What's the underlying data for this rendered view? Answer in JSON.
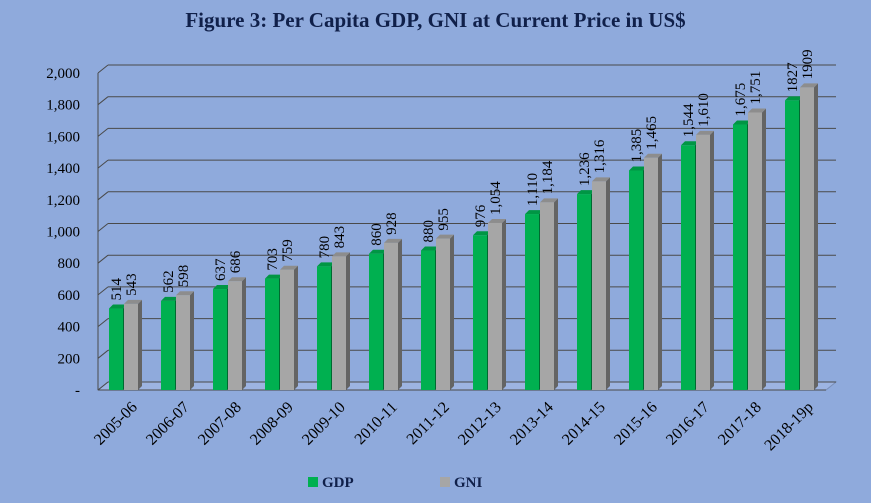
{
  "chart_data": {
    "type": "bar",
    "title": "Figure 3: Per Capita GDP, GNI at Current Price in US$",
    "categories": [
      "2005-06",
      "2006-07",
      "2007-08",
      "2008-09",
      "2009-10",
      "2010-11",
      "2011-12",
      "2012-13",
      "2013-14",
      "2014-15",
      "2015-16",
      "2016-17",
      "2017-18",
      "2018-19p"
    ],
    "series": [
      {
        "name": "GDP",
        "color": "#00b050",
        "values": [
          514,
          562,
          637,
          703,
          780,
          860,
          880,
          976,
          1110,
          1236,
          1385,
          1544,
          1675,
          1827
        ],
        "labels": [
          "514",
          "562",
          "637",
          "703",
          "780",
          "860",
          "880",
          "976",
          "1,110",
          "1,236",
          "1,385",
          "1,544",
          "1,675",
          "1827"
        ]
      },
      {
        "name": "GNI",
        "color": "#a6a6a6",
        "values": [
          543,
          598,
          686,
          759,
          843,
          928,
          955,
          1054,
          1184,
          1316,
          1465,
          1610,
          1751,
          1909
        ],
        "labels": [
          "543",
          "598",
          "686",
          "759",
          "843",
          "928",
          "955",
          "1,054",
          "1,184",
          "1,316",
          "1,465",
          "1,610",
          "1,751",
          "1909"
        ]
      }
    ],
    "yticks": [
      "-",
      "200",
      "400",
      "600",
      "800",
      "1,000",
      "1,200",
      "1,400",
      "1,600",
      "1,800",
      "2,000"
    ],
    "ylim": [
      0,
      2000
    ],
    "grid": true,
    "legend": "bottom-center",
    "three_d": true
  }
}
